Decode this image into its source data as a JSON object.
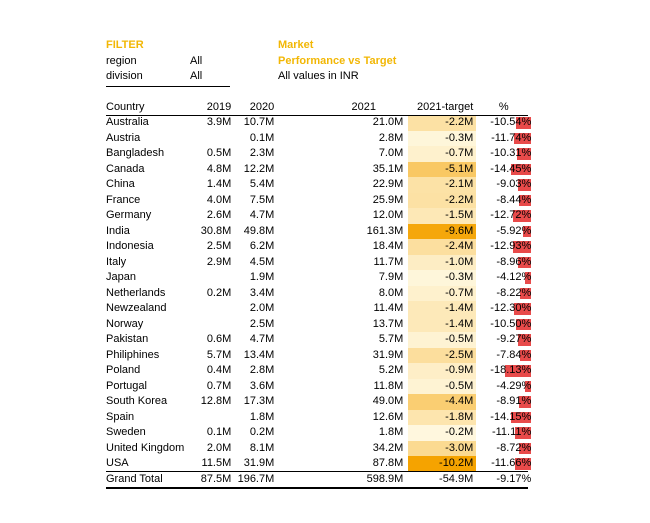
{
  "filter": {
    "title": "FILTER",
    "rows": [
      {
        "label": "region",
        "value": "All"
      },
      {
        "label": "division",
        "value": "All"
      }
    ]
  },
  "report": {
    "title_line1": "Market",
    "title_line2": "Performance vs Target",
    "note": "All values in INR"
  },
  "colors": {
    "accent": "#f2b705",
    "heat_high": "#f5a300",
    "heat_low": "#fffbe8",
    "neg_bar": "#e84a4a"
  },
  "table": {
    "headers": [
      "Country",
      "2019",
      "2020",
      "2021",
      "2021-target",
      "%"
    ],
    "rows": [
      {
        "country": "Australia",
        "y2019": "3.9M",
        "y2020": "10.7M",
        "y2021": "21.0M",
        "diff": "-2.2M",
        "diff_value": -2.2,
        "pct": "-10.54%",
        "pct_value": -10.54
      },
      {
        "country": "Austria",
        "y2019": "",
        "y2020": "0.1M",
        "y2021": "2.8M",
        "diff": "-0.3M",
        "diff_value": -0.3,
        "pct": "-11.74%",
        "pct_value": -11.74
      },
      {
        "country": "Bangladesh",
        "y2019": "0.5M",
        "y2020": "2.3M",
        "y2021": "7.0M",
        "diff": "-0.7M",
        "diff_value": -0.7,
        "pct": "-10.31%",
        "pct_value": -10.31
      },
      {
        "country": "Canada",
        "y2019": "4.8M",
        "y2020": "12.2M",
        "y2021": "35.1M",
        "diff": "-5.1M",
        "diff_value": -5.1,
        "pct": "-14.45%",
        "pct_value": -14.45
      },
      {
        "country": "China",
        "y2019": "1.4M",
        "y2020": "5.4M",
        "y2021": "22.9M",
        "diff": "-2.1M",
        "diff_value": -2.1,
        "pct": "-9.03%",
        "pct_value": -9.03
      },
      {
        "country": "France",
        "y2019": "4.0M",
        "y2020": "7.5M",
        "y2021": "25.9M",
        "diff": "-2.2M",
        "diff_value": -2.2,
        "pct": "-8.44%",
        "pct_value": -8.44
      },
      {
        "country": "Germany",
        "y2019": "2.6M",
        "y2020": "4.7M",
        "y2021": "12.0M",
        "diff": "-1.5M",
        "diff_value": -1.5,
        "pct": "-12.72%",
        "pct_value": -12.72
      },
      {
        "country": "India",
        "y2019": "30.8M",
        "y2020": "49.8M",
        "y2021": "161.3M",
        "diff": "-9.6M",
        "diff_value": -9.6,
        "pct": "-5.92%",
        "pct_value": -5.92
      },
      {
        "country": "Indonesia",
        "y2019": "2.5M",
        "y2020": "6.2M",
        "y2021": "18.4M",
        "diff": "-2.4M",
        "diff_value": -2.4,
        "pct": "-12.93%",
        "pct_value": -12.93
      },
      {
        "country": "Italy",
        "y2019": "2.9M",
        "y2020": "4.5M",
        "y2021": "11.7M",
        "diff": "-1.0M",
        "diff_value": -1.0,
        "pct": "-8.96%",
        "pct_value": -8.96
      },
      {
        "country": "Japan",
        "y2019": "",
        "y2020": "1.9M",
        "y2021": "7.9M",
        "diff": "-0.3M",
        "diff_value": -0.3,
        "pct": "-4.12%",
        "pct_value": -4.12
      },
      {
        "country": "Netherlands",
        "y2019": "0.2M",
        "y2020": "3.4M",
        "y2021": "8.0M",
        "diff": "-0.7M",
        "diff_value": -0.7,
        "pct": "-8.22%",
        "pct_value": -8.22
      },
      {
        "country": "Newzealand",
        "y2019": "",
        "y2020": "2.0M",
        "y2021": "11.4M",
        "diff": "-1.4M",
        "diff_value": -1.4,
        "pct": "-12.30%",
        "pct_value": -12.3
      },
      {
        "country": "Norway",
        "y2019": "",
        "y2020": "2.5M",
        "y2021": "13.7M",
        "diff": "-1.4M",
        "diff_value": -1.4,
        "pct": "-10.50%",
        "pct_value": -10.5
      },
      {
        "country": "Pakistan",
        "y2019": "0.6M",
        "y2020": "4.7M",
        "y2021": "5.7M",
        "diff": "-0.5M",
        "diff_value": -0.5,
        "pct": "-9.27%",
        "pct_value": -9.27
      },
      {
        "country": "Philiphines",
        "y2019": "5.7M",
        "y2020": "13.4M",
        "y2021": "31.9M",
        "diff": "-2.5M",
        "diff_value": -2.5,
        "pct": "-7.84%",
        "pct_value": -7.84
      },
      {
        "country": "Poland",
        "y2019": "0.4M",
        "y2020": "2.8M",
        "y2021": "5.2M",
        "diff": "-0.9M",
        "diff_value": -0.9,
        "pct": "-18.13%",
        "pct_value": -18.13
      },
      {
        "country": "Portugal",
        "y2019": "0.7M",
        "y2020": "3.6M",
        "y2021": "11.8M",
        "diff": "-0.5M",
        "diff_value": -0.5,
        "pct": "-4.29%",
        "pct_value": -4.29
      },
      {
        "country": "South Korea",
        "y2019": "12.8M",
        "y2020": "17.3M",
        "y2021": "49.0M",
        "diff": "-4.4M",
        "diff_value": -4.4,
        "pct": "-8.91%",
        "pct_value": -8.91
      },
      {
        "country": "Spain",
        "y2019": "",
        "y2020": "1.8M",
        "y2021": "12.6M",
        "diff": "-1.8M",
        "diff_value": -1.8,
        "pct": "-14.15%",
        "pct_value": -14.15
      },
      {
        "country": "Sweden",
        "y2019": "0.1M",
        "y2020": "0.2M",
        "y2021": "1.8M",
        "diff": "-0.2M",
        "diff_value": -0.2,
        "pct": "-11.11%",
        "pct_value": -11.11
      },
      {
        "country": "United Kingdom",
        "y2019": "2.0M",
        "y2020": "8.1M",
        "y2021": "34.2M",
        "diff": "-3.0M",
        "diff_value": -3.0,
        "pct": "-8.72%",
        "pct_value": -8.72
      },
      {
        "country": "USA",
        "y2019": "11.5M",
        "y2020": "31.9M",
        "y2021": "87.8M",
        "diff": "-10.2M",
        "diff_value": -10.2,
        "pct": "-11.66%",
        "pct_value": -11.66
      }
    ],
    "grand_total": {
      "label": "Grand Total",
      "y2019": "87.5M",
      "y2020": "196.7M",
      "y2021": "598.9M",
      "diff": "-54.9M",
      "pct": "-9.17%"
    }
  }
}
